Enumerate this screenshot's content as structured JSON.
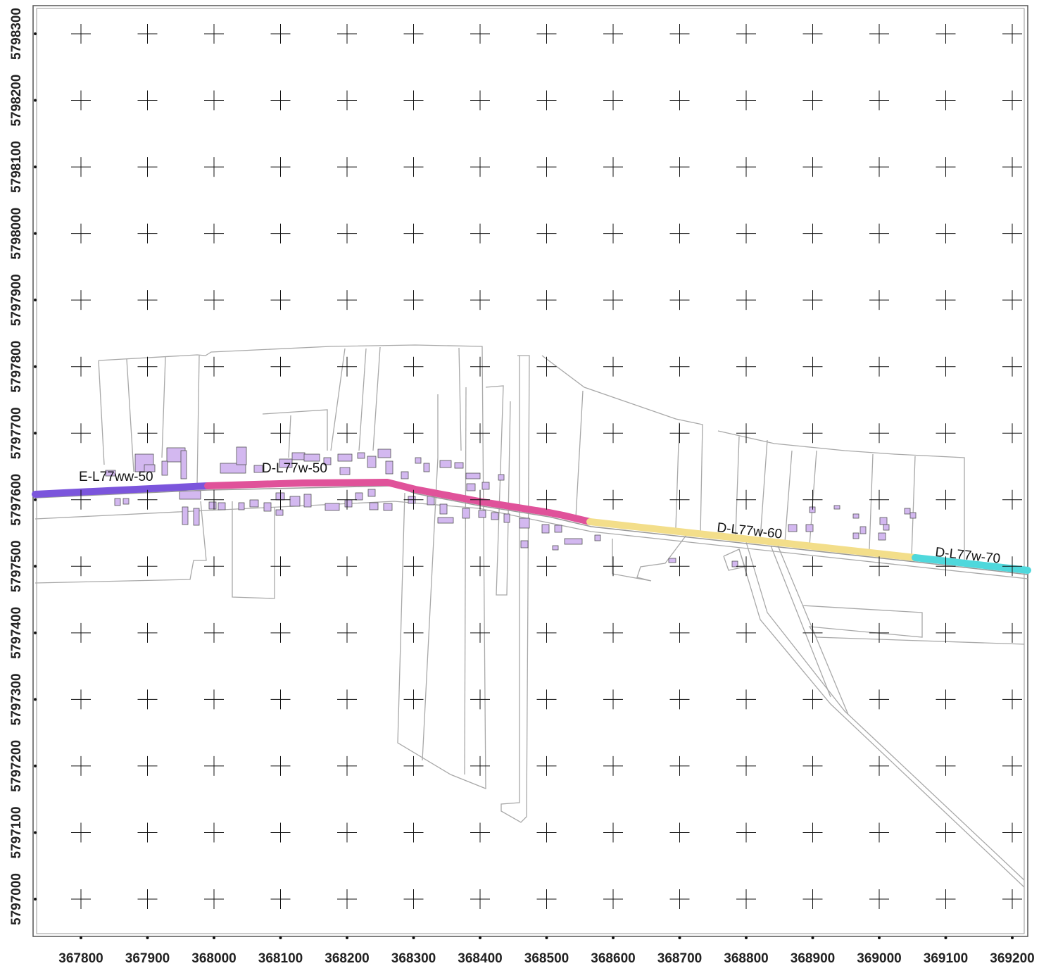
{
  "map": {
    "x_ticks": [
      367800,
      367900,
      368000,
      368100,
      368200,
      368300,
      368400,
      368500,
      368600,
      368700,
      368800,
      368900,
      369000,
      369100,
      369200
    ],
    "y_ticks": [
      5798300,
      5798200,
      5798100,
      5798000,
      5797900,
      5797800,
      5797700,
      5797600,
      5797500,
      5797400,
      5797300,
      5797200,
      5797100,
      5797000
    ],
    "segments": [
      {
        "label": "E-L77ww-50",
        "color": "#7b55dc"
      },
      {
        "label": "D-L77w-50",
        "color": "#e0529a"
      },
      {
        "label": "D-L77w-60",
        "color": "#f3de8a"
      },
      {
        "label": "D-L77w-70",
        "color": "#4fd8dc"
      }
    ]
  }
}
